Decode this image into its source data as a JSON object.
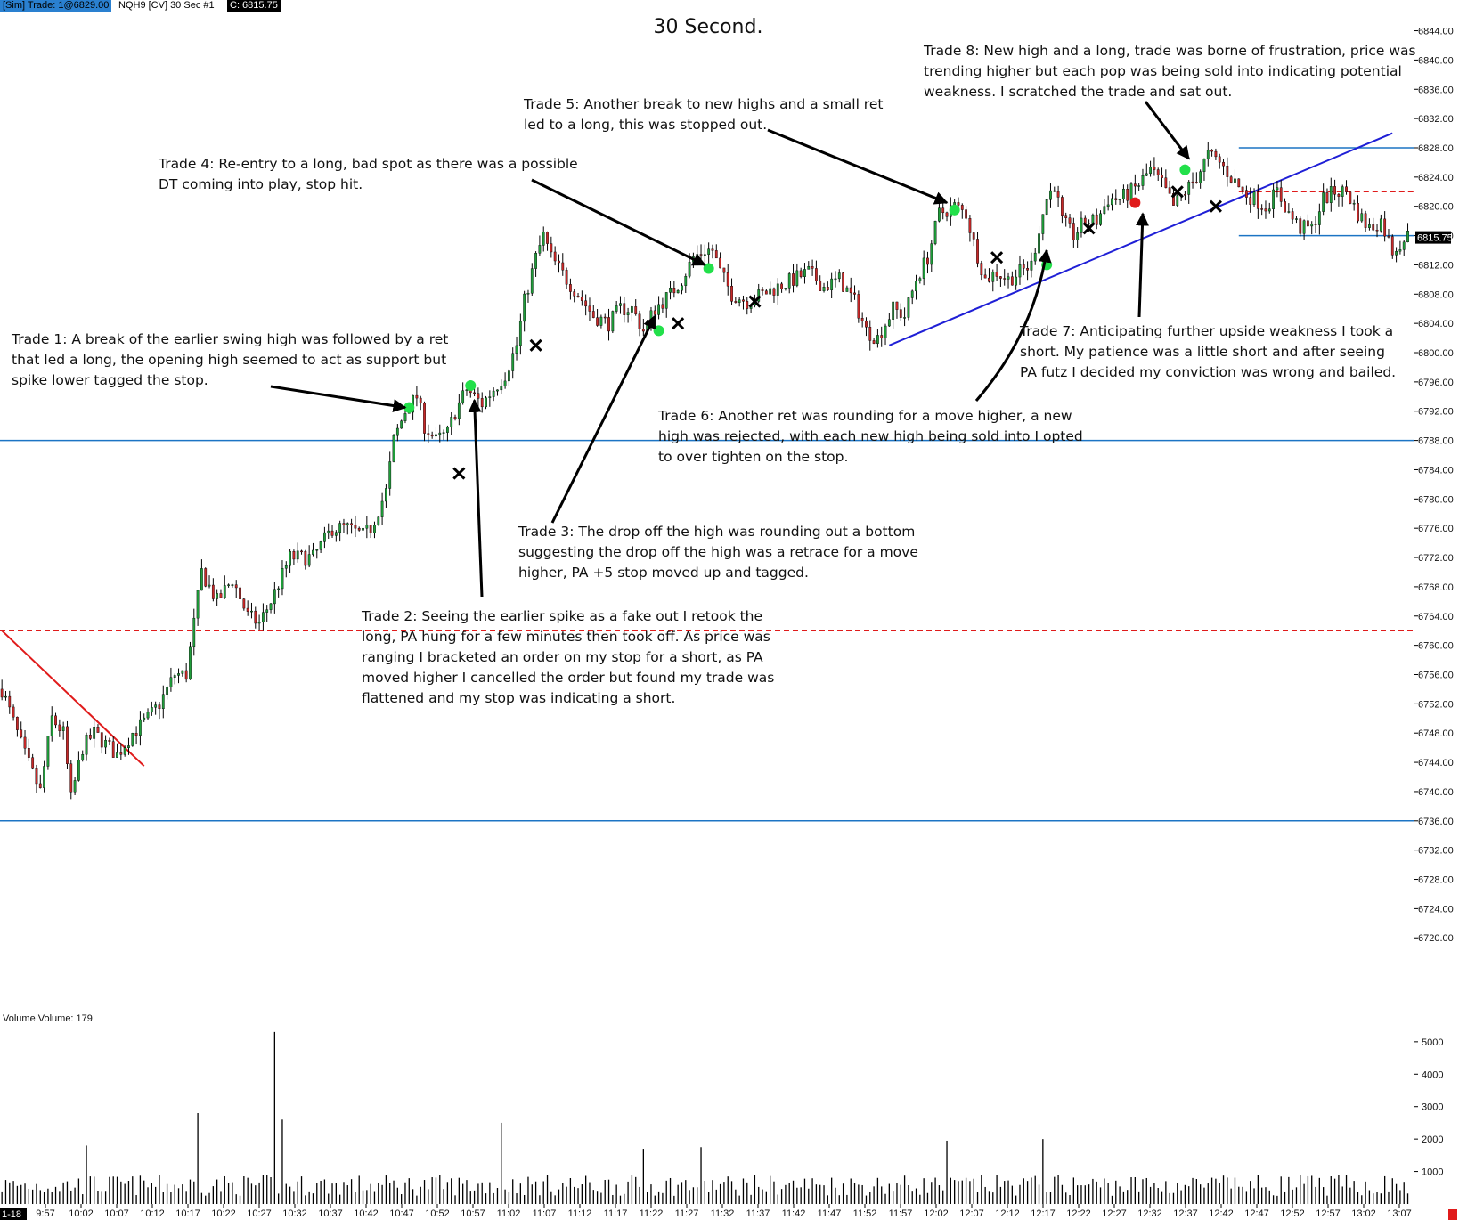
{
  "header": {
    "sim_label": "[Sim]  Trade: 1@6829.00",
    "symbol_label": "NQH9 [CV]  30 Sec    #1",
    "close_label": "C: 6815.75"
  },
  "title": "30 Second.",
  "notes": {
    "trade1": "Trade 1:  A break of the earlier swing high was followed by a ret\nthat led a long, the opening high seemed to act as support but\nspike lower tagged the stop.",
    "trade2": "Trade 2:  Seeing the earlier spike as a fake out I retook the\nlong, PA hung for a few minutes then took off.  As price was\nranging I bracketed an order on my stop for a short, as PA\nmoved higher I cancelled the order but found my trade was\nflattened and my stop was indicating a short.",
    "trade3": "Trade 3:  The drop off the high was rounding out a bottom\nsuggesting the drop off the high was a retrace for a move\nhigher, PA +5 stop moved up and tagged.",
    "trade4": "Trade 4:  Re-entry to a long, bad spot as there was a possible\nDT coming into play, stop hit.",
    "trade5": "Trade 5:  Another break to new highs and a small ret\nled to a long, this was stopped out.",
    "trade6": "Trade 6:  Another ret was rounding for a move higher, a new\nhigh was rejected, with each new high being sold into I opted\nto over tighten on the stop.",
    "trade7": "Trade 7:  Anticipating further upside weakness I took a\nshort.  My patience was a little short and after seeing\nPA futz I decided my conviction was wrong and bailed.",
    "trade8": "Trade 8:  New high and a long, trade was borne of frustration, price was\ntrending higher but each pop was being sold into indicating potential\nweakness.  I scratched the trade and sat out."
  },
  "volume_label": "Volume  Volume: 179",
  "date_label": "1-18",
  "last_price_label": "6815.75",
  "colors": {
    "up": "#1f9d3a",
    "down": "#c62828",
    "wick": "#000000",
    "hline": "#1c74c4",
    "dashed": "#e01b1b",
    "trend_blue": "#1f1fd6",
    "trend_red": "#e01b1b",
    "entry_long": "#22e04a",
    "entry_short": "#e01b1b",
    "exit": "#000000"
  },
  "chart_data": {
    "type": "candlestick",
    "title": "30 Second.",
    "symbol": "NQH9",
    "interval": "30 Sec",
    "price_axis": {
      "ticks": [
        6720.0,
        6724.0,
        6728.0,
        6732.0,
        6736.0,
        6740.0,
        6744.0,
        6748.0,
        6752.0,
        6756.0,
        6760.0,
        6764.0,
        6768.0,
        6772.0,
        6776.0,
        6780.0,
        6784.0,
        6788.0,
        6792.0,
        6796.0,
        6800.0,
        6804.0,
        6808.0,
        6812.0,
        6816.0,
        6820.0,
        6824.0,
        6828.0,
        6832.0,
        6836.0,
        6840.0,
        6844.0
      ],
      "ylim": [
        6716.5,
        6846.5
      ]
    },
    "time_axis": [
      "9:57",
      "10:02",
      "10:07",
      "10:12",
      "10:17",
      "10:22",
      "10:27",
      "10:32",
      "10:37",
      "10:42",
      "10:47",
      "10:52",
      "10:57",
      "11:02",
      "11:07",
      "11:12",
      "11:17",
      "11:22",
      "11:27",
      "11:32",
      "11:37",
      "11:42",
      "11:47",
      "11:52",
      "11:57",
      "12:02",
      "12:07",
      "12:12",
      "12:17",
      "12:22",
      "12:27",
      "12:32",
      "12:37",
      "12:42",
      "12:47",
      "12:52",
      "12:57",
      "13:02",
      "13:07"
    ],
    "price_path": [
      [
        0,
        6754
      ],
      [
        6,
        6745
      ],
      [
        10,
        6740
      ],
      [
        13,
        6750
      ],
      [
        16,
        6748
      ],
      [
        18,
        6739
      ],
      [
        21,
        6746
      ],
      [
        24,
        6748
      ],
      [
        30,
        6745
      ],
      [
        34,
        6748
      ],
      [
        38,
        6750
      ],
      [
        41,
        6752
      ],
      [
        45,
        6756
      ],
      [
        48,
        6756
      ],
      [
        52,
        6770
      ],
      [
        56,
        6766
      ],
      [
        60,
        6769
      ],
      [
        64,
        6764
      ],
      [
        67,
        6763
      ],
      [
        70,
        6766
      ],
      [
        75,
        6772
      ],
      [
        81,
        6772
      ],
      [
        86,
        6776
      ],
      [
        90,
        6776
      ],
      [
        94,
        6775
      ],
      [
        96,
        6776
      ],
      [
        100,
        6781
      ],
      [
        102,
        6788
      ],
      [
        105,
        6792
      ],
      [
        108,
        6794
      ],
      [
        110,
        6790
      ],
      [
        113,
        6788
      ],
      [
        116,
        6789
      ],
      [
        118,
        6792
      ],
      [
        121,
        6795
      ],
      [
        125,
        6793
      ],
      [
        128,
        6795
      ],
      [
        131,
        6797
      ],
      [
        134,
        6801
      ],
      [
        136,
        6807
      ],
      [
        139,
        6813
      ],
      [
        141,
        6816
      ],
      [
        143,
        6813
      ],
      [
        147,
        6810
      ],
      [
        150,
        6808
      ],
      [
        154,
        6805
      ],
      [
        158,
        6804
      ],
      [
        161,
        6806
      ],
      [
        164,
        6806
      ],
      [
        167,
        6803
      ],
      [
        170,
        6806
      ],
      [
        174,
        6808
      ],
      [
        177,
        6810
      ],
      [
        180,
        6813
      ],
      [
        183,
        6814
      ],
      [
        185,
        6814
      ],
      [
        187,
        6811
      ],
      [
        190,
        6808
      ],
      [
        194,
        6807
      ],
      [
        198,
        6808
      ],
      [
        202,
        6809
      ],
      [
        206,
        6810
      ],
      [
        210,
        6811
      ],
      [
        214,
        6809
      ],
      [
        218,
        6810
      ],
      [
        222,
        6807
      ],
      [
        225,
        6803
      ],
      [
        228,
        6802
      ],
      [
        232,
        6806
      ],
      [
        235,
        6805
      ],
      [
        238,
        6810
      ],
      [
        241,
        6813
      ],
      [
        244,
        6819
      ],
      [
        248,
        6820
      ],
      [
        251,
        6819
      ],
      [
        253,
        6815
      ],
      [
        256,
        6810
      ],
      [
        259,
        6811
      ],
      [
        262,
        6810
      ],
      [
        265,
        6811
      ],
      [
        268,
        6812
      ],
      [
        270,
        6817
      ],
      [
        272,
        6821
      ],
      [
        274,
        6823
      ],
      [
        276,
        6818
      ],
      [
        279,
        6816
      ],
      [
        282,
        6818
      ],
      [
        285,
        6818
      ],
      [
        288,
        6821
      ],
      [
        291,
        6821
      ],
      [
        294,
        6822
      ],
      [
        296,
        6823
      ],
      [
        299,
        6825
      ],
      [
        302,
        6823
      ],
      [
        305,
        6820
      ],
      [
        308,
        6822
      ],
      [
        311,
        6824
      ],
      [
        314,
        6827
      ],
      [
        317,
        6826
      ],
      [
        320,
        6824
      ],
      [
        323,
        6822
      ],
      [
        326,
        6821
      ],
      [
        329,
        6820
      ],
      [
        332,
        6822
      ],
      [
        335,
        6819
      ],
      [
        338,
        6817
      ],
      [
        341,
        6817
      ],
      [
        344,
        6821
      ],
      [
        347,
        6822
      ],
      [
        350,
        6822
      ],
      [
        353,
        6819
      ],
      [
        356,
        6817
      ],
      [
        359,
        6818
      ],
      [
        362,
        6814
      ],
      [
        364,
        6815
      ],
      [
        366,
        6816
      ]
    ],
    "volume_axis": {
      "ticks": [
        1000,
        2000,
        3000,
        4000,
        5000
      ],
      "ylim": [
        0,
        5600
      ]
    },
    "volume_spikes": [
      [
        22,
        1800
      ],
      [
        51,
        2800
      ],
      [
        71,
        5300
      ],
      [
        73,
        2600
      ],
      [
        130,
        2500
      ],
      [
        167,
        1700
      ],
      [
        182,
        1750
      ],
      [
        246,
        1950
      ],
      [
        271,
        2000
      ]
    ],
    "horizontal_levels": [
      {
        "price": 6788.0,
        "style": "solid",
        "color": "blue"
      },
      {
        "price": 6736.0,
        "style": "solid",
        "color": "blue"
      },
      {
        "price": 6762.0,
        "style": "dashed",
        "color": "red"
      }
    ],
    "range_box": {
      "x_start": 322,
      "x_end": 366,
      "upper": 6828.0,
      "lower": 6816.0,
      "mid_dashed": 6822.0
    },
    "trendlines": [
      {
        "color": "blue",
        "from": [
          231,
          6801
        ],
        "to": [
          362,
          6830
        ]
      },
      {
        "color": "red",
        "from": [
          0,
          6762
        ],
        "to": [
          37,
          6743.5
        ]
      }
    ],
    "markers": {
      "long_entries": [
        [
          106,
          6792.5
        ],
        [
          122,
          6795.5
        ],
        [
          171,
          6803
        ],
        [
          184,
          6811.5
        ],
        [
          248,
          6819.5
        ],
        [
          272,
          6812
        ],
        [
          308,
          6825
        ]
      ],
      "short_entries": [
        [
          295,
          6820.5
        ]
      ],
      "exits": [
        [
          119,
          6783.5
        ],
        [
          139,
          6801
        ],
        [
          176,
          6804
        ],
        [
          196,
          6807
        ],
        [
          259,
          6813
        ],
        [
          283,
          6817
        ],
        [
          306,
          6822
        ],
        [
          316,
          6820
        ]
      ]
    },
    "annotation_arrows": [
      {
        "trade": "Trade 1",
        "to": [
          105,
          6792.5
        ]
      },
      {
        "trade": "Trade 2",
        "to": [
          123,
          6793.5
        ]
      },
      {
        "trade": "Trade 3",
        "to": [
          170,
          6805
        ]
      },
      {
        "trade": "Trade 4",
        "to": [
          183,
          6812
        ]
      },
      {
        "trade": "Trade 5",
        "to": [
          246,
          6820.5
        ]
      },
      {
        "trade": "Trade 6",
        "to": [
          272,
          6814
        ]
      },
      {
        "trade": "Trade 7",
        "to": [
          297,
          6819
        ]
      },
      {
        "trade": "Trade 8",
        "to": [
          309,
          6826.5
        ]
      }
    ],
    "last_price": 6815.75
  }
}
